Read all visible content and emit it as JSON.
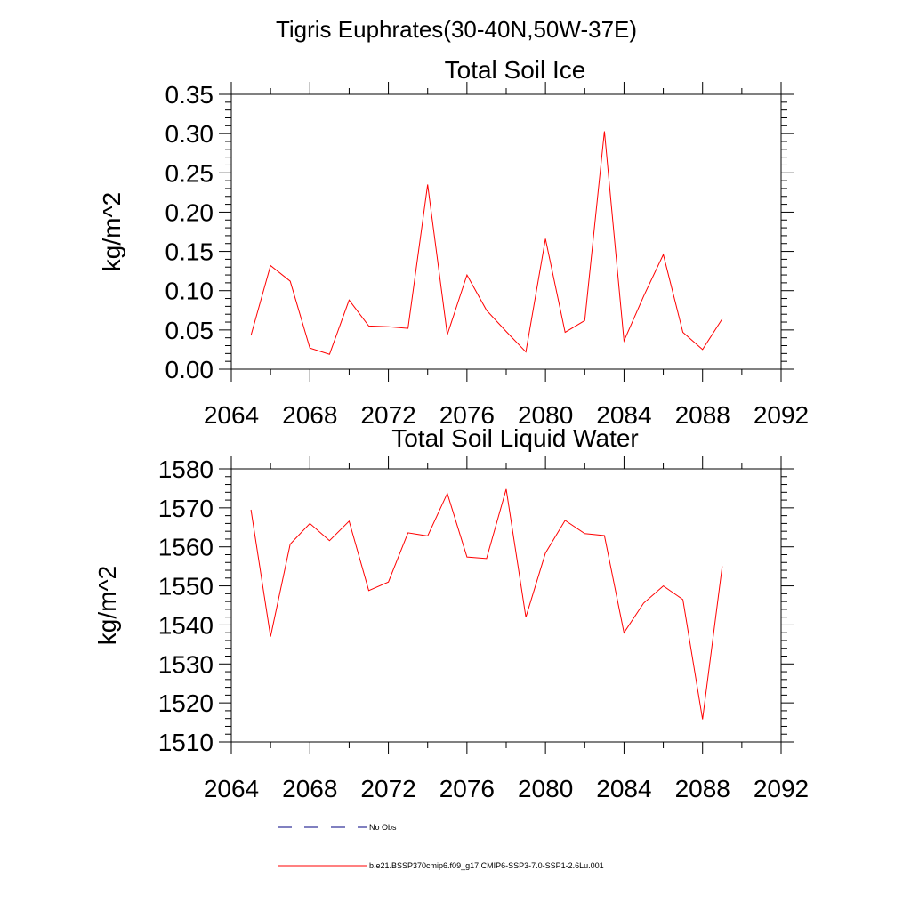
{
  "page_title": "Tigris Euphrates(30-40N,50W-37E)",
  "colors": {
    "series": "#ff0000",
    "obs": "#000080",
    "axis": "#000000"
  },
  "legend": {
    "obs_label": "No Obs",
    "model_label": "b.e21.BSSP370cmip6.f09_g17.CMIP6-SSP3-7.0-SSP1-2.6Lu.001"
  },
  "chart_data": [
    {
      "type": "line",
      "title": "Total Soil Ice",
      "ylabel": "kg/m^2",
      "xlim": [
        2064,
        2092
      ],
      "ylim": [
        0,
        0.35
      ],
      "xticks": [
        2064,
        2068,
        2072,
        2076,
        2080,
        2084,
        2088,
        2092
      ],
      "xtick_labels": [
        "2064",
        "2068",
        "2072",
        "2076",
        "2080",
        "2084",
        "2088",
        "2092"
      ],
      "yticks": [
        0,
        0.05,
        0.1,
        0.15,
        0.2,
        0.25,
        0.3,
        0.35
      ],
      "ytick_labels": [
        "0.00",
        "0.05",
        "0.10",
        "0.15",
        "0.20",
        "0.25",
        "0.30",
        "0.35"
      ],
      "x": [
        2065,
        2066,
        2067,
        2068,
        2069,
        2070,
        2071,
        2072,
        2073,
        2074,
        2075,
        2076,
        2077,
        2078,
        2079,
        2080,
        2081,
        2082,
        2083,
        2084,
        2085,
        2086,
        2087,
        2088,
        2089
      ],
      "series": [
        {
          "values": [
            0.043,
            0.132,
            0.112,
            0.027,
            0.019,
            0.088,
            0.055,
            0.054,
            0.052,
            0.235,
            0.044,
            0.12,
            0.075,
            0.048,
            0.022,
            0.166,
            0.047,
            0.062,
            0.303,
            0.036,
            0.093,
            0.146,
            0.047,
            0.025,
            0.064
          ]
        }
      ]
    },
    {
      "type": "line",
      "title": "Total Soil Liquid Water",
      "ylabel": "kg/m^2",
      "xlim": [
        2064,
        2092
      ],
      "ylim": [
        1510,
        1580
      ],
      "xticks": [
        2064,
        2068,
        2072,
        2076,
        2080,
        2084,
        2088,
        2092
      ],
      "xtick_labels": [
        "2064",
        "2068",
        "2072",
        "2076",
        "2080",
        "2084",
        "2088",
        "2092"
      ],
      "yticks": [
        1510,
        1520,
        1530,
        1540,
        1550,
        1560,
        1570,
        1580
      ],
      "ytick_labels": [
        "1510",
        "1520",
        "1530",
        "1540",
        "1550",
        "1560",
        "1570",
        "1580"
      ],
      "x": [
        2065,
        2066,
        2067,
        2068,
        2069,
        2070,
        2071,
        2072,
        2073,
        2074,
        2075,
        2076,
        2077,
        2078,
        2079,
        2080,
        2081,
        2082,
        2083,
        2084,
        2085,
        2086,
        2087,
        2088,
        2089
      ],
      "series": [
        {
          "values": [
            1569.5,
            1537.0,
            1560.7,
            1566.0,
            1561.6,
            1566.6,
            1548.8,
            1551.0,
            1563.6,
            1562.8,
            1573.7,
            1557.4,
            1557.0,
            1574.8,
            1542.0,
            1558.4,
            1566.8,
            1563.4,
            1562.9,
            1538.0,
            1545.6,
            1550.0,
            1546.5,
            1515.8,
            1555.0
          ]
        }
      ]
    }
  ]
}
